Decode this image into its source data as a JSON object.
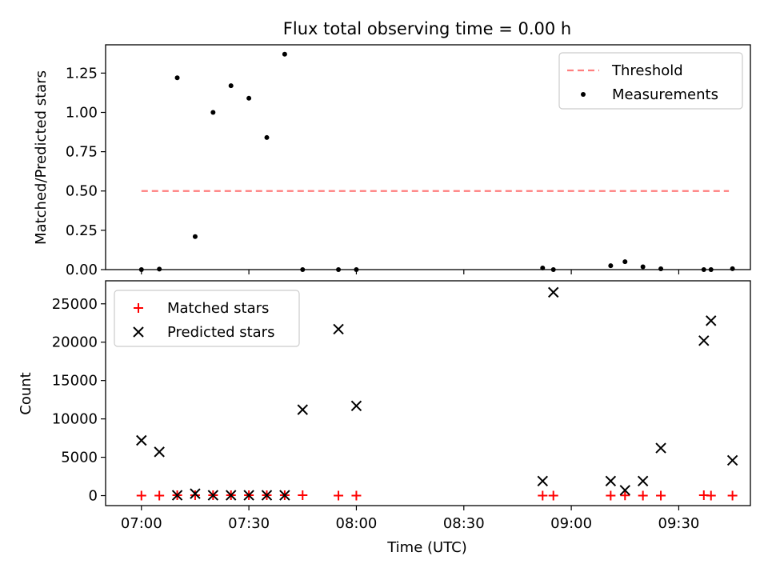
{
  "chart_data": [
    {
      "type": "scatter",
      "title": "Flux total observing time = 0.00 h",
      "xlabel": "",
      "ylabel": "Matched/Predicted stars",
      "xlim": [
        "06:50",
        "09:50"
      ],
      "ylim": [
        0,
        1.43
      ],
      "yticks": [
        0.0,
        0.25,
        0.5,
        0.75,
        1.0,
        1.25
      ],
      "ytick_labels": [
        "0.00",
        "0.25",
        "0.50",
        "0.75",
        "1.00",
        "1.25"
      ],
      "xticks": [
        "07:00",
        "07:30",
        "08:00",
        "08:30",
        "09:00",
        "09:30"
      ],
      "show_xtick_labels": false,
      "legend": {
        "placement": "top-right"
      },
      "threshold": {
        "name": "Threshold",
        "value": 0.5,
        "x_start": "07:00",
        "x_end": "09:44",
        "color": "#ff7f7f",
        "style": "dashed"
      },
      "series": [
        {
          "name": "Measurements",
          "color": "#000000",
          "marker": "dot",
          "points": [
            {
              "x": "07:00",
              "y": 0.0
            },
            {
              "x": "07:05",
              "y": 0.003
            },
            {
              "x": "07:10",
              "y": 1.22
            },
            {
              "x": "07:15",
              "y": 0.21
            },
            {
              "x": "07:20",
              "y": 1.0
            },
            {
              "x": "07:25",
              "y": 1.17
            },
            {
              "x": "07:30",
              "y": 1.09
            },
            {
              "x": "07:35",
              "y": 0.84
            },
            {
              "x": "07:40",
              "y": 1.37
            },
            {
              "x": "07:45",
              "y": 0.0
            },
            {
              "x": "07:55",
              "y": 0.0
            },
            {
              "x": "08:00",
              "y": 0.0
            },
            {
              "x": "08:52",
              "y": 0.01
            },
            {
              "x": "08:55",
              "y": 0.0
            },
            {
              "x": "09:11",
              "y": 0.025
            },
            {
              "x": "09:15",
              "y": 0.05
            },
            {
              "x": "09:20",
              "y": 0.018
            },
            {
              "x": "09:25",
              "y": 0.005
            },
            {
              "x": "09:37",
              "y": 0.0
            },
            {
              "x": "09:39",
              "y": 0.0
            },
            {
              "x": "09:45",
              "y": 0.006
            }
          ]
        }
      ]
    },
    {
      "type": "scatter",
      "title": "",
      "xlabel": "Time (UTC)",
      "ylabel": "Count",
      "xlim": [
        "06:50",
        "09:50"
      ],
      "ylim": [
        -1300,
        28000
      ],
      "yticks": [
        0,
        5000,
        10000,
        15000,
        20000,
        25000
      ],
      "ytick_labels": [
        "0",
        "5000",
        "10000",
        "15000",
        "20000",
        "25000"
      ],
      "xticks": [
        "07:00",
        "07:30",
        "08:00",
        "08:30",
        "09:00",
        "09:30"
      ],
      "show_xtick_labels": true,
      "legend": {
        "placement": "top-left"
      },
      "series": [
        {
          "name": "Matched stars",
          "color": "#ff0000",
          "marker": "plus",
          "points": [
            {
              "x": "07:00",
              "y": 0
            },
            {
              "x": "07:05",
              "y": 0
            },
            {
              "x": "07:10",
              "y": 50
            },
            {
              "x": "07:15",
              "y": 50
            },
            {
              "x": "07:20",
              "y": 50
            },
            {
              "x": "07:25",
              "y": 50
            },
            {
              "x": "07:30",
              "y": 50
            },
            {
              "x": "07:35",
              "y": 50
            },
            {
              "x": "07:40",
              "y": 50
            },
            {
              "x": "07:45",
              "y": 50
            },
            {
              "x": "07:55",
              "y": 0
            },
            {
              "x": "08:00",
              "y": 0
            },
            {
              "x": "08:52",
              "y": 0
            },
            {
              "x": "08:55",
              "y": 0
            },
            {
              "x": "09:11",
              "y": 0
            },
            {
              "x": "09:15",
              "y": 30
            },
            {
              "x": "09:20",
              "y": 0
            },
            {
              "x": "09:25",
              "y": 0
            },
            {
              "x": "09:37",
              "y": 50
            },
            {
              "x": "09:39",
              "y": 0
            },
            {
              "x": "09:45",
              "y": 0
            }
          ]
        },
        {
          "name": "Predicted stars",
          "color": "#000000",
          "marker": "x",
          "points": [
            {
              "x": "07:00",
              "y": 7200
            },
            {
              "x": "07:05",
              "y": 5700
            },
            {
              "x": "07:10",
              "y": 50
            },
            {
              "x": "07:15",
              "y": 250
            },
            {
              "x": "07:20",
              "y": 50
            },
            {
              "x": "07:25",
              "y": 50
            },
            {
              "x": "07:30",
              "y": 50
            },
            {
              "x": "07:35",
              "y": 50
            },
            {
              "x": "07:40",
              "y": 50
            },
            {
              "x": "07:45",
              "y": 11200
            },
            {
              "x": "07:55",
              "y": 21700
            },
            {
              "x": "08:00",
              "y": 11700
            },
            {
              "x": "08:52",
              "y": 1900
            },
            {
              "x": "08:55",
              "y": 26500
            },
            {
              "x": "09:11",
              "y": 1900
            },
            {
              "x": "09:15",
              "y": 700
            },
            {
              "x": "09:20",
              "y": 1900
            },
            {
              "x": "09:25",
              "y": 6200
            },
            {
              "x": "09:37",
              "y": 20200
            },
            {
              "x": "09:39",
              "y": 22800
            },
            {
              "x": "09:45",
              "y": 4600
            }
          ]
        }
      ]
    }
  ]
}
